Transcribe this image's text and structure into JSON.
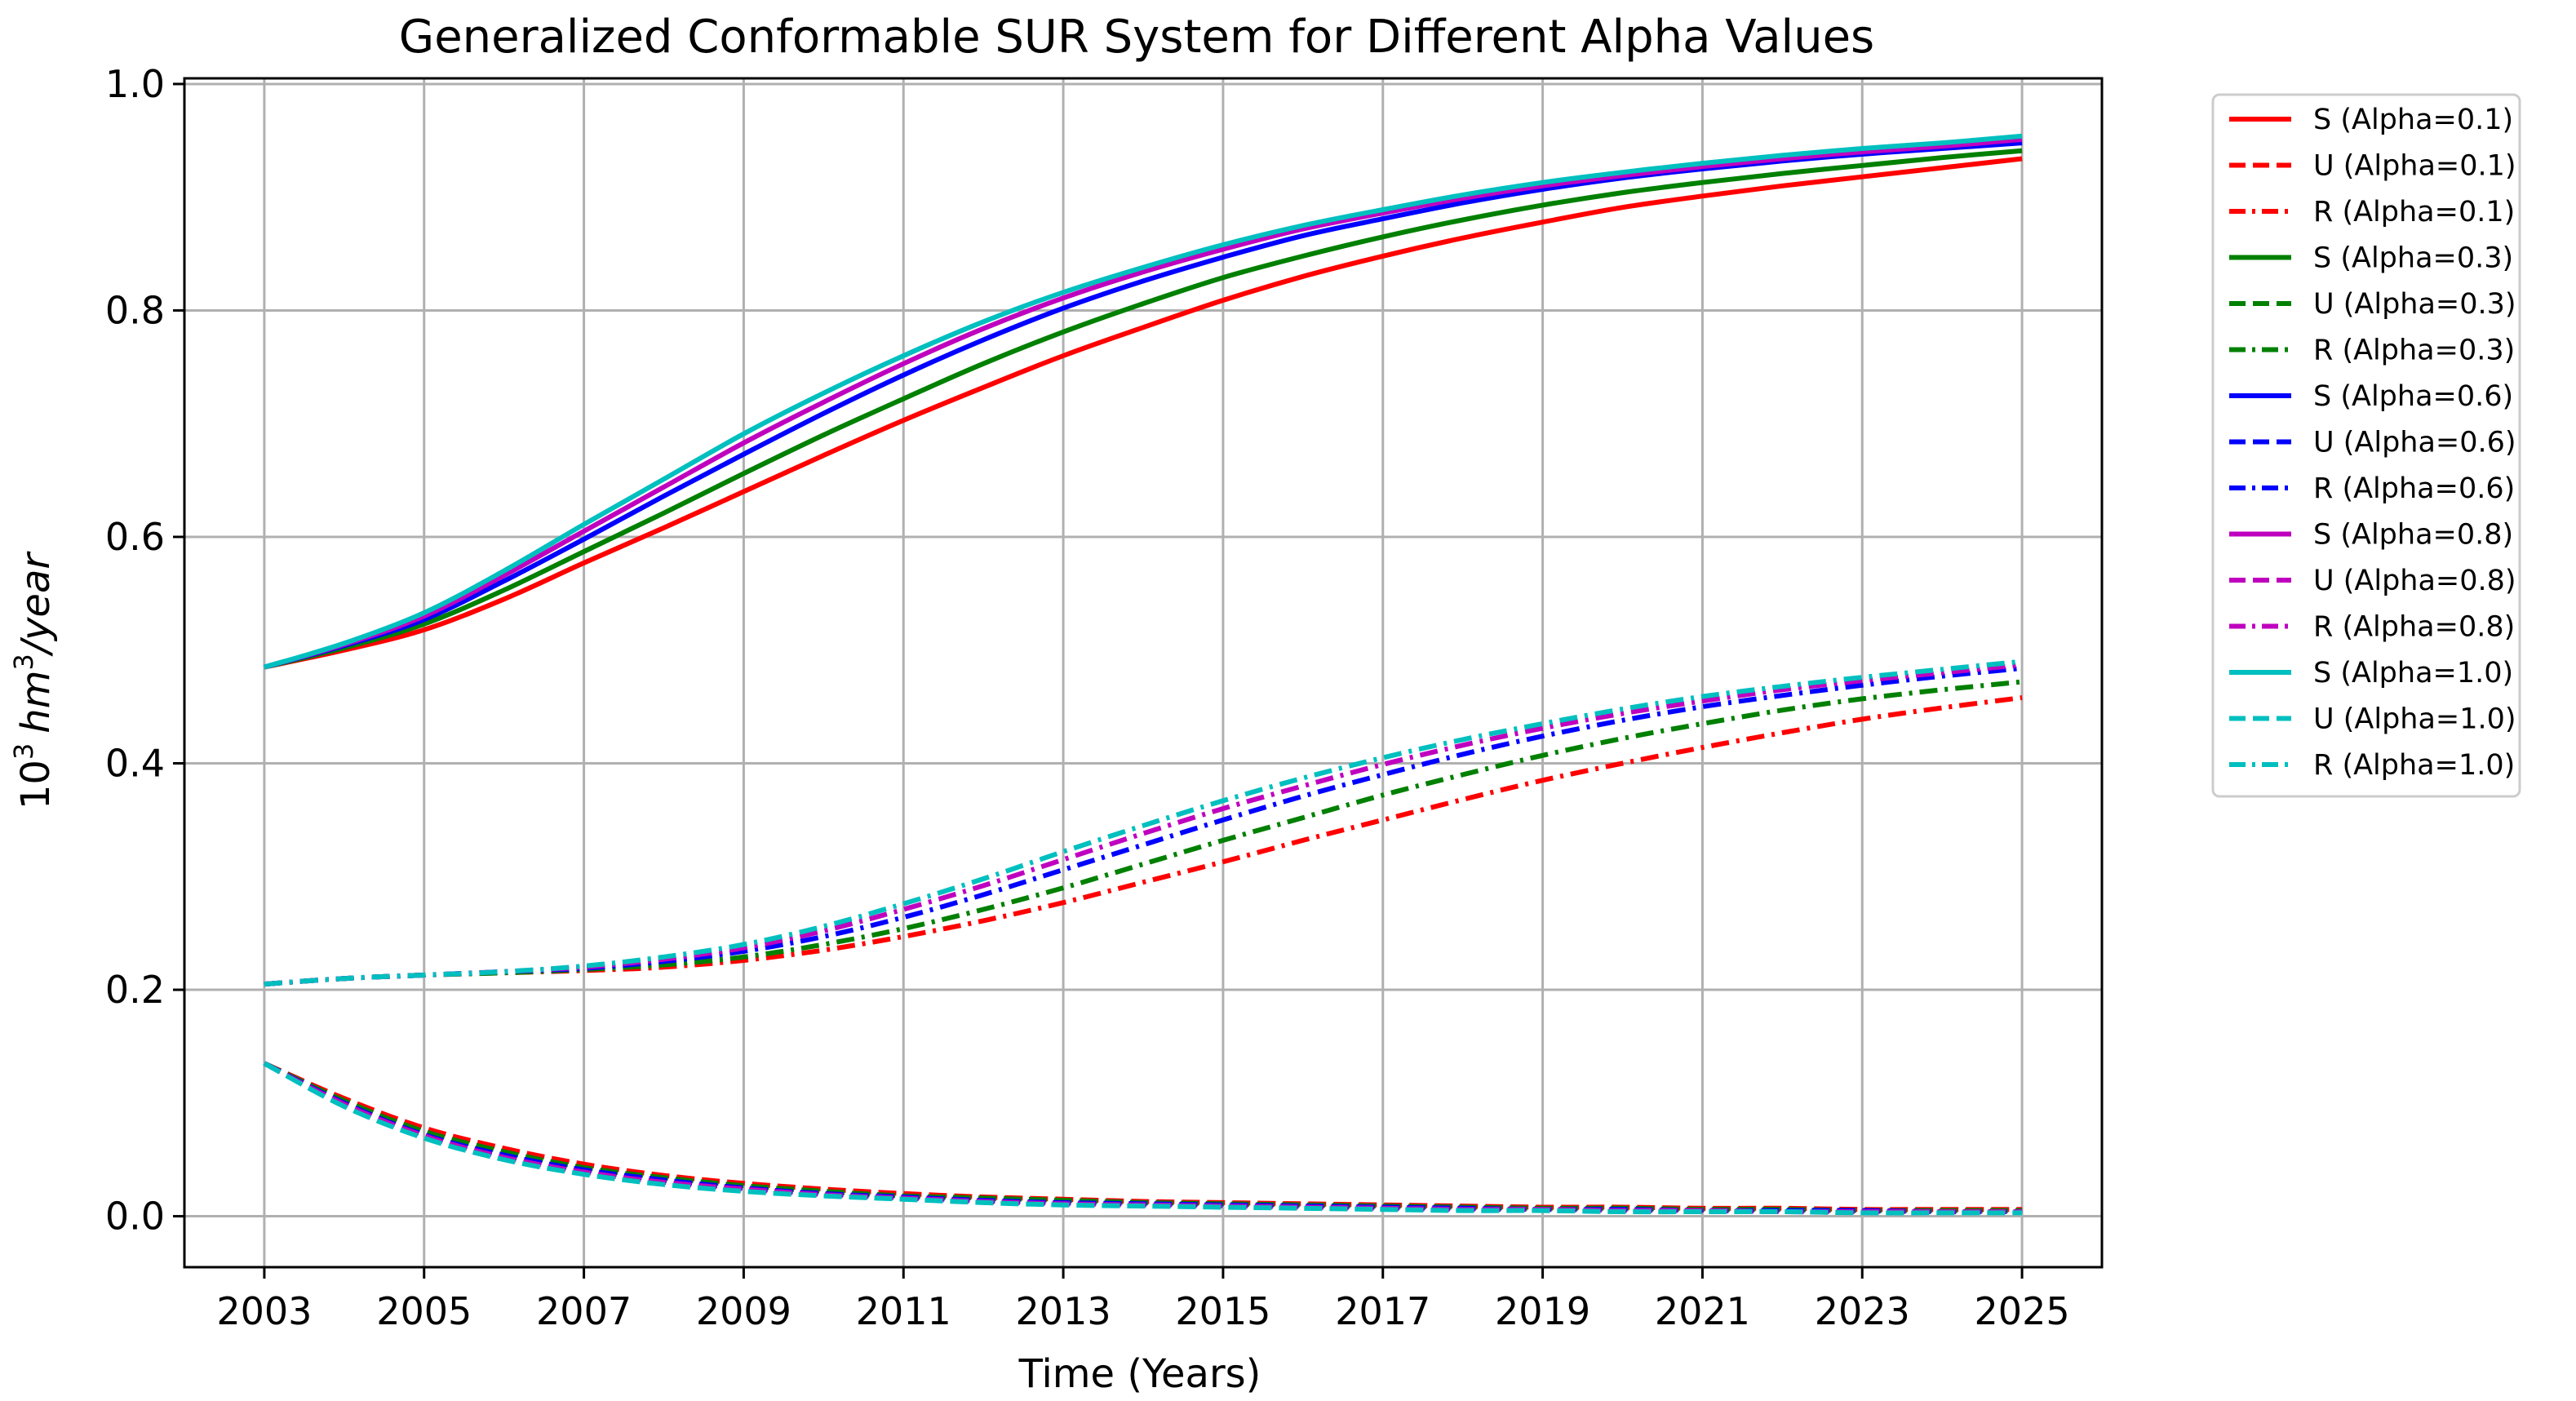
{
  "chart_data": {
    "type": "line",
    "title": "Generalized Conformable SUR System for Different Alpha Values",
    "xlabel": "Time (Years)",
    "ylabel": {
      "base": "10",
      "exp": "3",
      "unit": "hm",
      "unit_exp": "3",
      "suffix": "/year"
    },
    "xlim": [
      2002,
      2026
    ],
    "ylim": [
      -0.045,
      1.005
    ],
    "xticks": [
      2003,
      2005,
      2007,
      2009,
      2011,
      2013,
      2015,
      2017,
      2019,
      2021,
      2023,
      2025
    ],
    "yticks": [
      "0.0",
      "0.2",
      "0.4",
      "0.6",
      "0.8",
      "1.0"
    ],
    "ytick_values": [
      0.0,
      0.2,
      0.4,
      0.6,
      0.8,
      1.0
    ],
    "grid": true,
    "legend_position": "outside-right",
    "x": [
      2003,
      2004,
      2005,
      2006,
      2007,
      2008,
      2009,
      2010,
      2011,
      2012,
      2013,
      2014,
      2015,
      2016,
      2017,
      2018,
      2019,
      2020,
      2021,
      2022,
      2023,
      2024,
      2025
    ],
    "series": [
      {
        "name": "S (Alpha=0.1)",
        "color": "#ff0000",
        "dash": "solid",
        "values": [
          0.485,
          0.5,
          0.518,
          0.545,
          0.577,
          0.608,
          0.64,
          0.672,
          0.703,
          0.732,
          0.76,
          0.785,
          0.809,
          0.83,
          0.848,
          0.864,
          0.878,
          0.891,
          0.901,
          0.91,
          0.918,
          0.926,
          0.934
        ]
      },
      {
        "name": "U (Alpha=0.1)",
        "color": "#ff0000",
        "dash": "dashed",
        "values": [
          0.135,
          0.104,
          0.078,
          0.06,
          0.046,
          0.036,
          0.029,
          0.024,
          0.02,
          0.017,
          0.015,
          0.013,
          0.012,
          0.011,
          0.01,
          0.009,
          0.008,
          0.008,
          0.007,
          0.007,
          0.006,
          0.006,
          0.006
        ]
      },
      {
        "name": "R (Alpha=0.1)",
        "color": "#ff0000",
        "dash": "dashdot",
        "values": [
          0.205,
          0.21,
          0.213,
          0.215,
          0.217,
          0.22,
          0.226,
          0.235,
          0.247,
          0.261,
          0.277,
          0.295,
          0.313,
          0.332,
          0.35,
          0.368,
          0.385,
          0.4,
          0.414,
          0.427,
          0.439,
          0.449,
          0.458
        ]
      },
      {
        "name": "S (Alpha=0.3)",
        "color": "#008000",
        "dash": "solid",
        "values": [
          0.485,
          0.502,
          0.523,
          0.553,
          0.587,
          0.621,
          0.656,
          0.69,
          0.722,
          0.753,
          0.781,
          0.806,
          0.829,
          0.848,
          0.865,
          0.88,
          0.893,
          0.904,
          0.913,
          0.921,
          0.928,
          0.935,
          0.941
        ]
      },
      {
        "name": "U (Alpha=0.3)",
        "color": "#008000",
        "dash": "dashed",
        "values": [
          0.135,
          0.102,
          0.075,
          0.057,
          0.043,
          0.034,
          0.027,
          0.022,
          0.018,
          0.016,
          0.014,
          0.012,
          0.011,
          0.01,
          0.009,
          0.008,
          0.007,
          0.007,
          0.006,
          0.006,
          0.005,
          0.005,
          0.005
        ]
      },
      {
        "name": "R (Alpha=0.3)",
        "color": "#008000",
        "dash": "dashdot",
        "values": [
          0.205,
          0.21,
          0.213,
          0.215,
          0.218,
          0.222,
          0.229,
          0.24,
          0.254,
          0.271,
          0.29,
          0.311,
          0.332,
          0.352,
          0.372,
          0.39,
          0.407,
          0.422,
          0.435,
          0.447,
          0.457,
          0.465,
          0.472
        ]
      },
      {
        "name": "S (Alpha=0.6)",
        "color": "#0000ff",
        "dash": "solid",
        "values": [
          0.485,
          0.504,
          0.527,
          0.561,
          0.598,
          0.636,
          0.673,
          0.709,
          0.743,
          0.774,
          0.802,
          0.826,
          0.847,
          0.866,
          0.881,
          0.895,
          0.907,
          0.917,
          0.925,
          0.932,
          0.938,
          0.943,
          0.948
        ]
      },
      {
        "name": "U (Alpha=0.6)",
        "color": "#0000ff",
        "dash": "dashed",
        "values": [
          0.135,
          0.1,
          0.072,
          0.054,
          0.041,
          0.032,
          0.025,
          0.02,
          0.017,
          0.014,
          0.012,
          0.011,
          0.01,
          0.009,
          0.008,
          0.007,
          0.006,
          0.006,
          0.005,
          0.005,
          0.005,
          0.004,
          0.004
        ]
      },
      {
        "name": "R (Alpha=0.6)",
        "color": "#0000ff",
        "dash": "dashdot",
        "values": [
          0.205,
          0.21,
          0.213,
          0.216,
          0.219,
          0.225,
          0.234,
          0.247,
          0.264,
          0.284,
          0.306,
          0.328,
          0.35,
          0.371,
          0.39,
          0.408,
          0.424,
          0.438,
          0.45,
          0.46,
          0.469,
          0.477,
          0.484
        ]
      },
      {
        "name": "S (Alpha=0.8)",
        "color": "#bf00bf",
        "dash": "solid",
        "values": [
          0.485,
          0.505,
          0.53,
          0.566,
          0.605,
          0.644,
          0.683,
          0.719,
          0.753,
          0.784,
          0.811,
          0.834,
          0.854,
          0.872,
          0.886,
          0.899,
          0.91,
          0.919,
          0.927,
          0.934,
          0.94,
          0.945,
          0.951
        ]
      },
      {
        "name": "U (Alpha=0.8)",
        "color": "#bf00bf",
        "dash": "dashed",
        "values": [
          0.135,
          0.099,
          0.071,
          0.052,
          0.039,
          0.03,
          0.024,
          0.019,
          0.016,
          0.013,
          0.011,
          0.01,
          0.009,
          0.008,
          0.007,
          0.006,
          0.006,
          0.005,
          0.005,
          0.004,
          0.004,
          0.004,
          0.004
        ]
      },
      {
        "name": "R (Alpha=0.8)",
        "color": "#bf00bf",
        "dash": "dashdot",
        "values": [
          0.205,
          0.21,
          0.213,
          0.216,
          0.22,
          0.227,
          0.237,
          0.252,
          0.271,
          0.292,
          0.315,
          0.338,
          0.36,
          0.38,
          0.399,
          0.416,
          0.431,
          0.444,
          0.455,
          0.465,
          0.473,
          0.48,
          0.487
        ]
      },
      {
        "name": "S (Alpha=1.0)",
        "color": "#00bfbf",
        "dash": "solid",
        "values": [
          0.485,
          0.506,
          0.533,
          0.57,
          0.611,
          0.651,
          0.691,
          0.727,
          0.76,
          0.79,
          0.816,
          0.838,
          0.858,
          0.875,
          0.889,
          0.902,
          0.913,
          0.922,
          0.93,
          0.937,
          0.943,
          0.948,
          0.954
        ]
      },
      {
        "name": "U (Alpha=1.0)",
        "color": "#00bfbf",
        "dash": "dashed",
        "values": [
          0.135,
          0.097,
          0.069,
          0.05,
          0.037,
          0.028,
          0.022,
          0.018,
          0.015,
          0.012,
          0.01,
          0.009,
          0.008,
          0.007,
          0.006,
          0.005,
          0.005,
          0.004,
          0.004,
          0.004,
          0.003,
          0.003,
          0.003
        ]
      },
      {
        "name": "R (Alpha=1.0)",
        "color": "#00bfbf",
        "dash": "dashdot",
        "values": [
          0.205,
          0.21,
          0.213,
          0.216,
          0.221,
          0.229,
          0.24,
          0.256,
          0.276,
          0.298,
          0.322,
          0.345,
          0.367,
          0.387,
          0.405,
          0.421,
          0.435,
          0.448,
          0.459,
          0.468,
          0.476,
          0.483,
          0.49
        ]
      }
    ]
  }
}
